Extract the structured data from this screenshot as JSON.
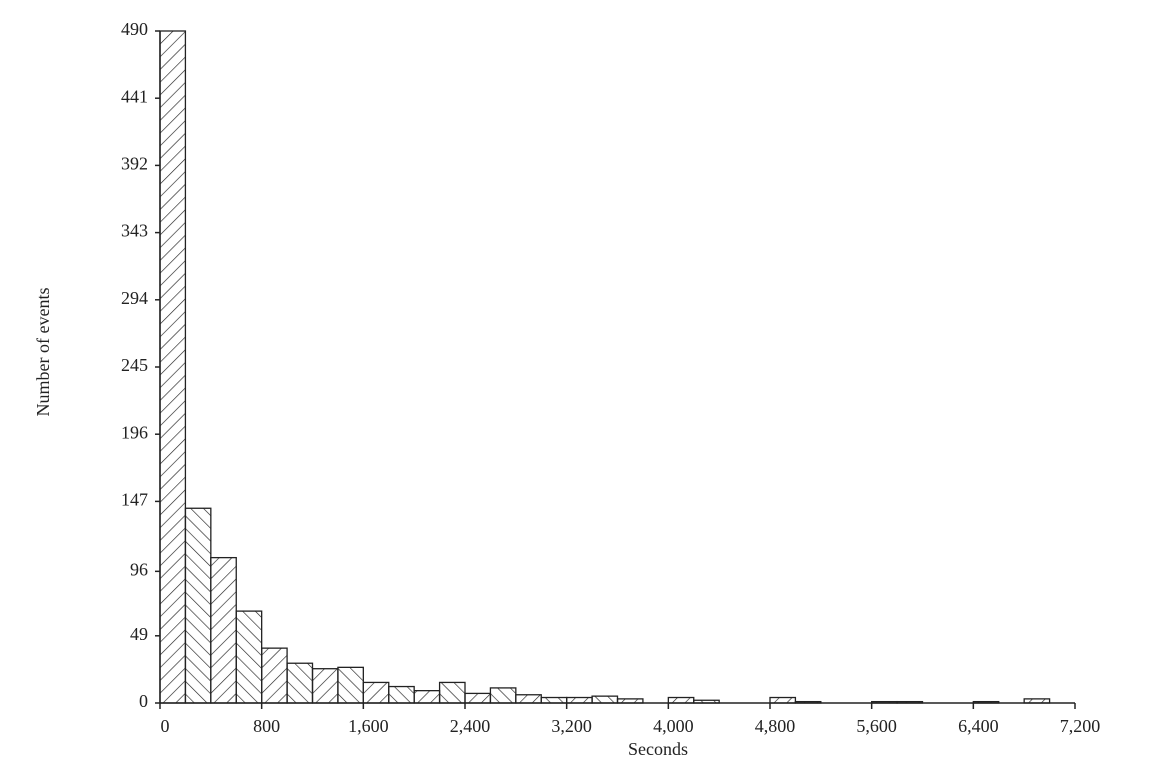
{
  "chart_data": {
    "type": "histogram",
    "xlabel": "Seconds",
    "ylabel": "Number of events",
    "bins": [
      0,
      200,
      400,
      600,
      800,
      1000,
      1200,
      1400,
      1600,
      1800,
      2000,
      2200,
      2400,
      2600,
      2800,
      3000,
      3200,
      3400,
      3600,
      3800,
      4000,
      4200,
      4400,
      4600,
      4800,
      5000,
      5200,
      5400,
      5600,
      5800,
      6000,
      6200,
      6400,
      6600,
      6800,
      7000,
      7200
    ],
    "values": [
      490,
      142,
      106,
      67,
      40,
      29,
      25,
      26,
      15,
      12,
      9,
      15,
      7,
      11,
      6,
      4,
      4,
      5,
      3,
      0,
      4,
      2,
      0,
      0,
      4,
      1,
      0,
      0,
      1,
      1,
      0,
      0,
      1,
      0,
      3,
      0
    ],
    "xlim": [
      0,
      7200
    ],
    "ylim": [
      0,
      490
    ],
    "xticks": [
      0,
      800,
      {
        "value": 1600,
        "label": "1,600"
      },
      {
        "value": 2400,
        "label": "2,400"
      },
      {
        "value": 3200,
        "label": "3,200"
      },
      {
        "value": 4000,
        "label": "4,000"
      },
      {
        "value": 4800,
        "label": "4,800"
      },
      {
        "value": 5600,
        "label": "5,600"
      },
      {
        "value": 6400,
        "label": "6,400"
      },
      {
        "value": 7200,
        "label": "7,200"
      }
    ],
    "yticks": [
      0,
      49,
      96,
      147,
      196,
      245,
      294,
      343,
      392,
      441,
      490
    ],
    "color": "#222222"
  }
}
